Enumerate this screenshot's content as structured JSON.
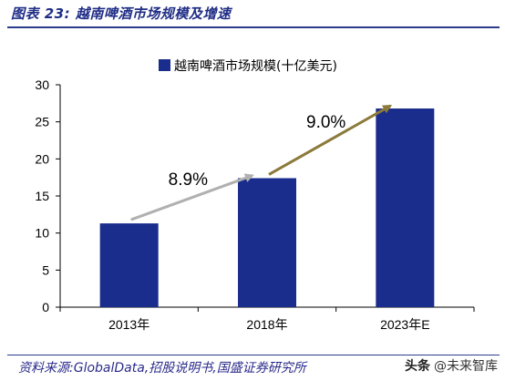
{
  "figure": {
    "title": "图表 23:  越南啤酒市场规模及增速",
    "source": "资料来源:GlobalData,招股说明书,国盛证券研究所",
    "watermark_logo": "头条",
    "watermark_text": "@未来智库"
  },
  "chart_data": {
    "type": "bar",
    "title": "",
    "xlabel": "",
    "ylabel": "",
    "categories": [
      "2013年",
      "2018年",
      "2023年E"
    ],
    "series": [
      {
        "name": "越南啤酒市场规模(十亿美元)",
        "values": [
          11.3,
          17.4,
          26.8
        ],
        "color": "#1a2c8c"
      }
    ],
    "ylim": [
      0,
      30
    ],
    "yticks": [
      0,
      5,
      10,
      15,
      20,
      25,
      30
    ],
    "grid": false,
    "legend": "top-center",
    "annotations": [
      {
        "label": "8.9%",
        "from_category": "2013年",
        "to_category": "2018年",
        "arrow_color": "#b0b0b0"
      },
      {
        "label": "9.0%",
        "from_category": "2018年",
        "to_category": "2023年E",
        "arrow_color": "#8b7a3a"
      }
    ]
  }
}
